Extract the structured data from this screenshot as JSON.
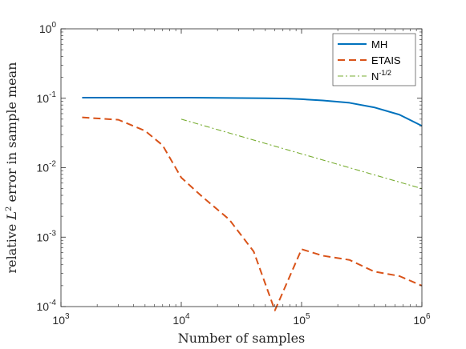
{
  "chart_data": {
    "type": "line",
    "xscale": "log",
    "yscale": "log",
    "xlim": [
      1000,
      1000000
    ],
    "ylim": [
      0.0001,
      1
    ],
    "xlabel": "Number of samples",
    "ylabel": "relative L² error in sample mean",
    "ylabel_parts": {
      "pre": "relative ",
      "L": "L",
      "sup": "2",
      "post": " error in sample mean"
    },
    "xticks": [
      {
        "value": 1000,
        "base": "10",
        "exp": "3"
      },
      {
        "value": 10000,
        "base": "10",
        "exp": "4"
      },
      {
        "value": 100000,
        "base": "10",
        "exp": "5"
      },
      {
        "value": 1000000,
        "base": "10",
        "exp": "6"
      }
    ],
    "yticks": [
      {
        "value": 0.0001,
        "base": "10",
        "exp": "-4"
      },
      {
        "value": 0.001,
        "base": "10",
        "exp": "-3"
      },
      {
        "value": 0.01,
        "base": "10",
        "exp": "-2"
      },
      {
        "value": 0.1,
        "base": "10",
        "exp": "-1"
      },
      {
        "value": 1,
        "base": "10",
        "exp": "0"
      }
    ],
    "legend_position": "top-right",
    "grid": false,
    "series": [
      {
        "name": "MH",
        "color": "#0072BD",
        "dash": "solid",
        "x": [
          1500,
          3000,
          6000,
          12000,
          25000,
          50000,
          75000,
          100000,
          150000,
          250000,
          400000,
          650000,
          1000000
        ],
        "y": [
          0.102,
          0.102,
          0.102,
          0.102,
          0.101,
          0.1,
          0.099,
          0.097,
          0.093,
          0.086,
          0.074,
          0.058,
          0.04
        ]
      },
      {
        "name": "ETAIS",
        "color": "#D95319",
        "dash": "dashed",
        "x": [
          1500,
          3000,
          5000,
          7000,
          10000,
          15000,
          25000,
          40000,
          60000,
          100000,
          150000,
          250000,
          400000,
          650000,
          1000000
        ],
        "y": [
          0.053,
          0.049,
          0.034,
          0.021,
          0.0072,
          0.0038,
          0.0018,
          0.00062,
          8.8e-05,
          0.00067,
          0.00054,
          0.00047,
          0.00032,
          0.000275,
          0.0002
        ]
      },
      {
        "name": "N",
        "name_sup": "-1/2",
        "color": "#77AC30",
        "dash": "dashdot",
        "x": [
          10000,
          1000000
        ],
        "y": [
          0.05,
          0.005
        ]
      }
    ]
  }
}
